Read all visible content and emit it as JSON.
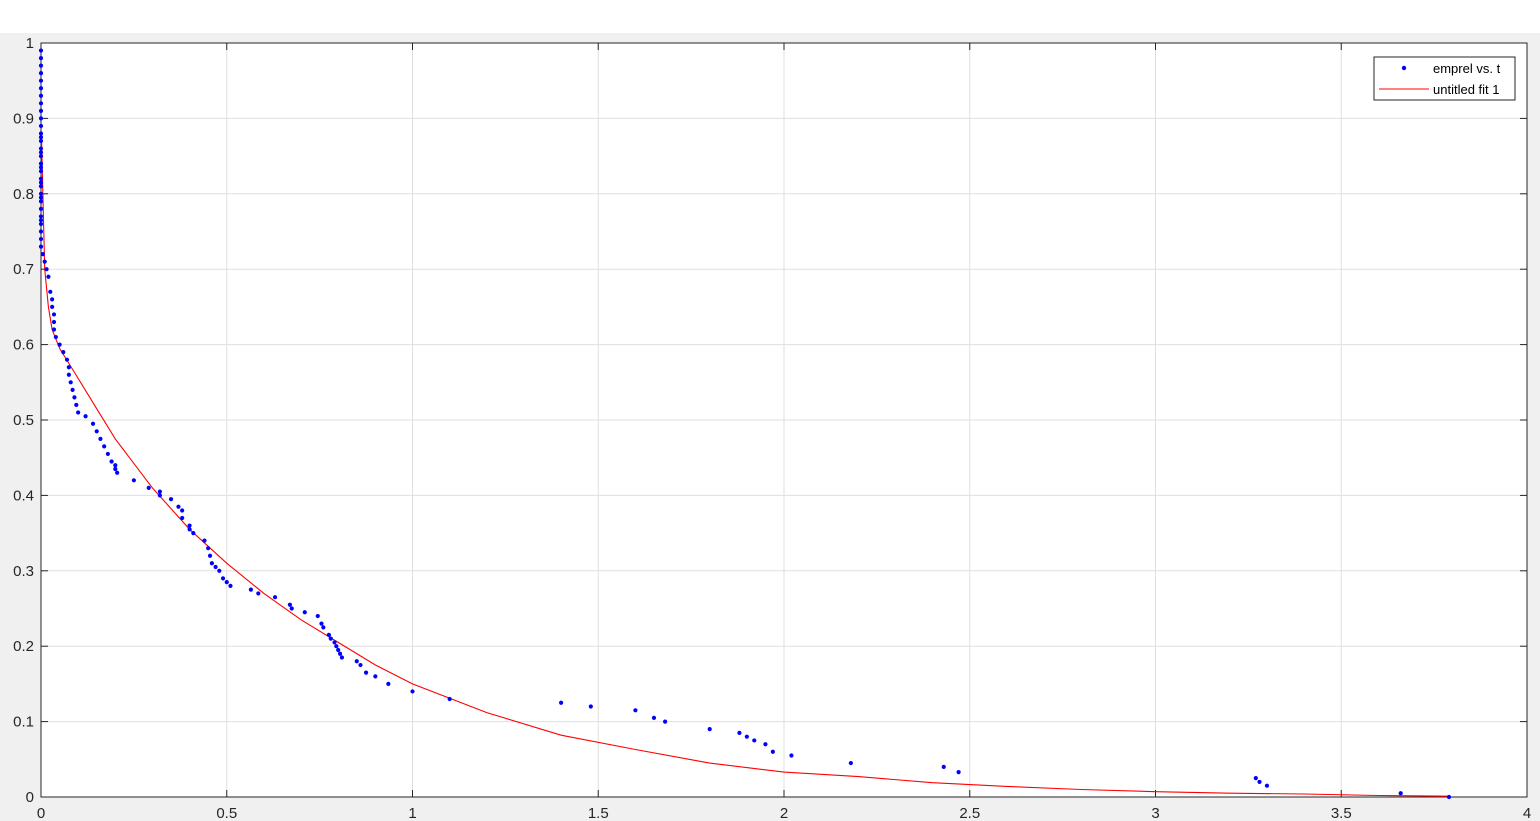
{
  "colors": {
    "figure_background": "#f0f0f0",
    "axes_background": "#ffffff",
    "grid": "#dfdfdf",
    "axis": "#262626",
    "data_marker": "#0000ff",
    "fit_line": "#ff0000"
  },
  "chart_data": {
    "type": "scatter",
    "grid": true,
    "legend_placement": "top-right",
    "xlim": [
      0,
      4
    ],
    "ylim": [
      0,
      1
    ],
    "x_ticks": [
      0,
      0.5,
      1,
      1.5,
      2,
      2.5,
      3,
      3.5,
      4
    ],
    "x_tick_labels": [
      "0",
      "0.5",
      "1",
      "1.5",
      "2",
      "2.5",
      "3",
      "3.5",
      "4"
    ],
    "y_ticks": [
      0,
      0.1,
      0.2,
      0.3,
      0.4,
      0.5,
      0.6,
      0.7,
      0.8,
      0.9,
      1
    ],
    "y_tick_labels": [
      "0",
      "0.1",
      "0.2",
      "0.3",
      "0.4",
      "0.5",
      "0.6",
      "0.7",
      "0.8",
      "0.9",
      "1"
    ],
    "series": [
      {
        "name": "emprel vs. t",
        "style": "markers",
        "color": "#0000ff",
        "x": [
          0,
          0,
          0,
          0,
          0,
          0,
          0,
          0,
          0,
          0,
          0,
          0,
          0,
          0,
          0,
          0,
          0,
          0,
          0,
          0,
          0,
          0,
          0,
          0,
          0,
          0,
          0,
          0,
          0,
          0,
          0,
          0,
          0,
          0.005,
          0.01,
          0.015,
          0.02,
          0.025,
          0.03,
          0.03,
          0.035,
          0.035,
          0.035,
          0.04,
          0.05,
          0.06,
          0.07,
          0.075,
          0.075,
          0.08,
          0.085,
          0.09,
          0.095,
          0.1,
          0.12,
          0.14,
          0.15,
          0.16,
          0.17,
          0.18,
          0.19,
          0.2,
          0.2,
          0.205,
          0.25,
          0.29,
          0.32,
          0.32,
          0.35,
          0.37,
          0.38,
          0.38,
          0.4,
          0.4,
          0.41,
          0.44,
          0.45,
          0.455,
          0.46,
          0.47,
          0.48,
          0.49,
          0.5,
          0.51,
          0.565,
          0.585,
          0.63,
          0.67,
          0.675,
          0.71,
          0.745,
          0.755,
          0.76,
          0.775,
          0.78,
          0.79,
          0.795,
          0.8,
          0.805,
          0.81,
          0.85,
          0.86,
          0.875,
          0.9,
          0.935,
          1.0,
          1.1,
          1.4,
          1.48,
          1.6,
          1.65,
          1.68,
          1.8,
          1.88,
          1.9,
          1.92,
          1.95,
          1.97,
          2.02,
          2.18,
          2.43,
          2.47,
          3.27,
          3.28,
          3.3,
          3.66,
          3.79
        ],
        "y": [
          0.99,
          0.98,
          0.97,
          0.96,
          0.95,
          0.94,
          0.93,
          0.92,
          0.91,
          0.9,
          0.89,
          0.88,
          0.875,
          0.87,
          0.86,
          0.855,
          0.85,
          0.84,
          0.835,
          0.83,
          0.82,
          0.815,
          0.81,
          0.8,
          0.795,
          0.79,
          0.78,
          0.77,
          0.765,
          0.76,
          0.75,
          0.74,
          0.73,
          0.72,
          0.71,
          0.7,
          0.69,
          0.67,
          0.66,
          0.65,
          0.64,
          0.63,
          0.62,
          0.61,
          0.6,
          0.59,
          0.58,
          0.57,
          0.56,
          0.55,
          0.54,
          0.53,
          0.52,
          0.51,
          0.505,
          0.495,
          0.485,
          0.475,
          0.465,
          0.455,
          0.445,
          0.435,
          0.44,
          0.43,
          0.42,
          0.41,
          0.405,
          0.4,
          0.395,
          0.385,
          0.38,
          0.37,
          0.36,
          0.355,
          0.35,
          0.34,
          0.33,
          0.32,
          0.31,
          0.305,
          0.3,
          0.29,
          0.285,
          0.28,
          0.275,
          0.27,
          0.265,
          0.255,
          0.25,
          0.245,
          0.24,
          0.23,
          0.225,
          0.215,
          0.21,
          0.205,
          0.2,
          0.195,
          0.19,
          0.185,
          0.18,
          0.175,
          0.165,
          0.16,
          0.15,
          0.14,
          0.13,
          0.125,
          0.12,
          0.115,
          0.105,
          0.1,
          0.09,
          0.085,
          0.08,
          0.075,
          0.07,
          0.06,
          0.055,
          0.045,
          0.04,
          0.033,
          0.025,
          0.02,
          0.015,
          0.005,
          0.0
        ]
      },
      {
        "name": "untitled fit 1",
        "style": "line",
        "color": "#ff0000",
        "x": [
          0.001,
          0.01,
          0.02,
          0.03,
          0.05,
          0.1,
          0.15,
          0.2,
          0.3,
          0.4,
          0.5,
          0.6,
          0.7,
          0.8,
          0.9,
          1.0,
          1.2,
          1.4,
          1.6,
          1.8,
          2.0,
          2.2,
          2.4,
          2.6,
          2.8,
          3.0,
          3.2,
          3.4,
          3.6,
          3.79
        ],
        "y": [
          0.88,
          0.7,
          0.65,
          0.62,
          0.595,
          0.555,
          0.515,
          0.475,
          0.41,
          0.355,
          0.31,
          0.27,
          0.235,
          0.205,
          0.175,
          0.15,
          0.112,
          0.082,
          0.063,
          0.045,
          0.033,
          0.027,
          0.019,
          0.014,
          0.01,
          0.007,
          0.005,
          0.004,
          0.002,
          0.001
        ]
      }
    ]
  }
}
